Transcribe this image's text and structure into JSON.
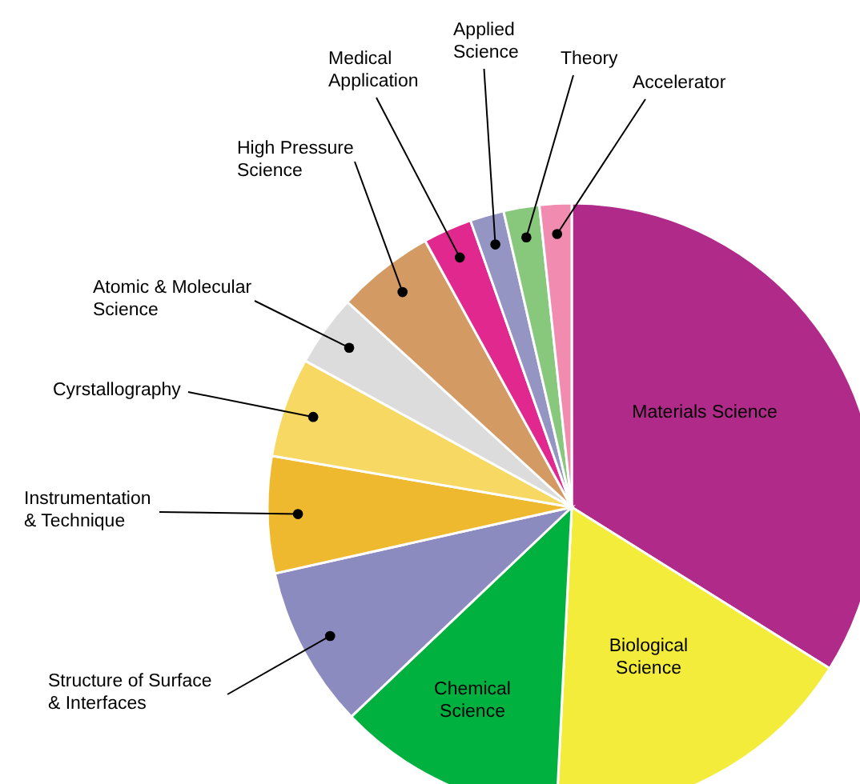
{
  "chart_data": {
    "type": "pie",
    "categories": [
      "Materials Science",
      "Biological Science",
      "Chemical Science",
      "Structure of Surface & Interfaces",
      "Instrumentation & Technique",
      "Cyrstallography",
      "Atomic & Molecular Science",
      "High Pressure Science",
      "Medical Application",
      "Applied Science",
      "Theory",
      "Accelerator"
    ],
    "values": [
      33.9,
      16.9,
      12.1,
      8.6,
      6.2,
      5.3,
      3.8,
      5.2,
      2.6,
      1.8,
      1.9,
      1.7
    ],
    "colors": [
      "#b02a8a",
      "#f4ec3a",
      "#00b140",
      "#8c8bbf",
      "#eeb92f",
      "#f7d862",
      "#dcdcdc",
      "#d49a63",
      "#e1288e",
      "#9595c4",
      "#87c87d",
      "#f18cb0"
    ]
  }
}
